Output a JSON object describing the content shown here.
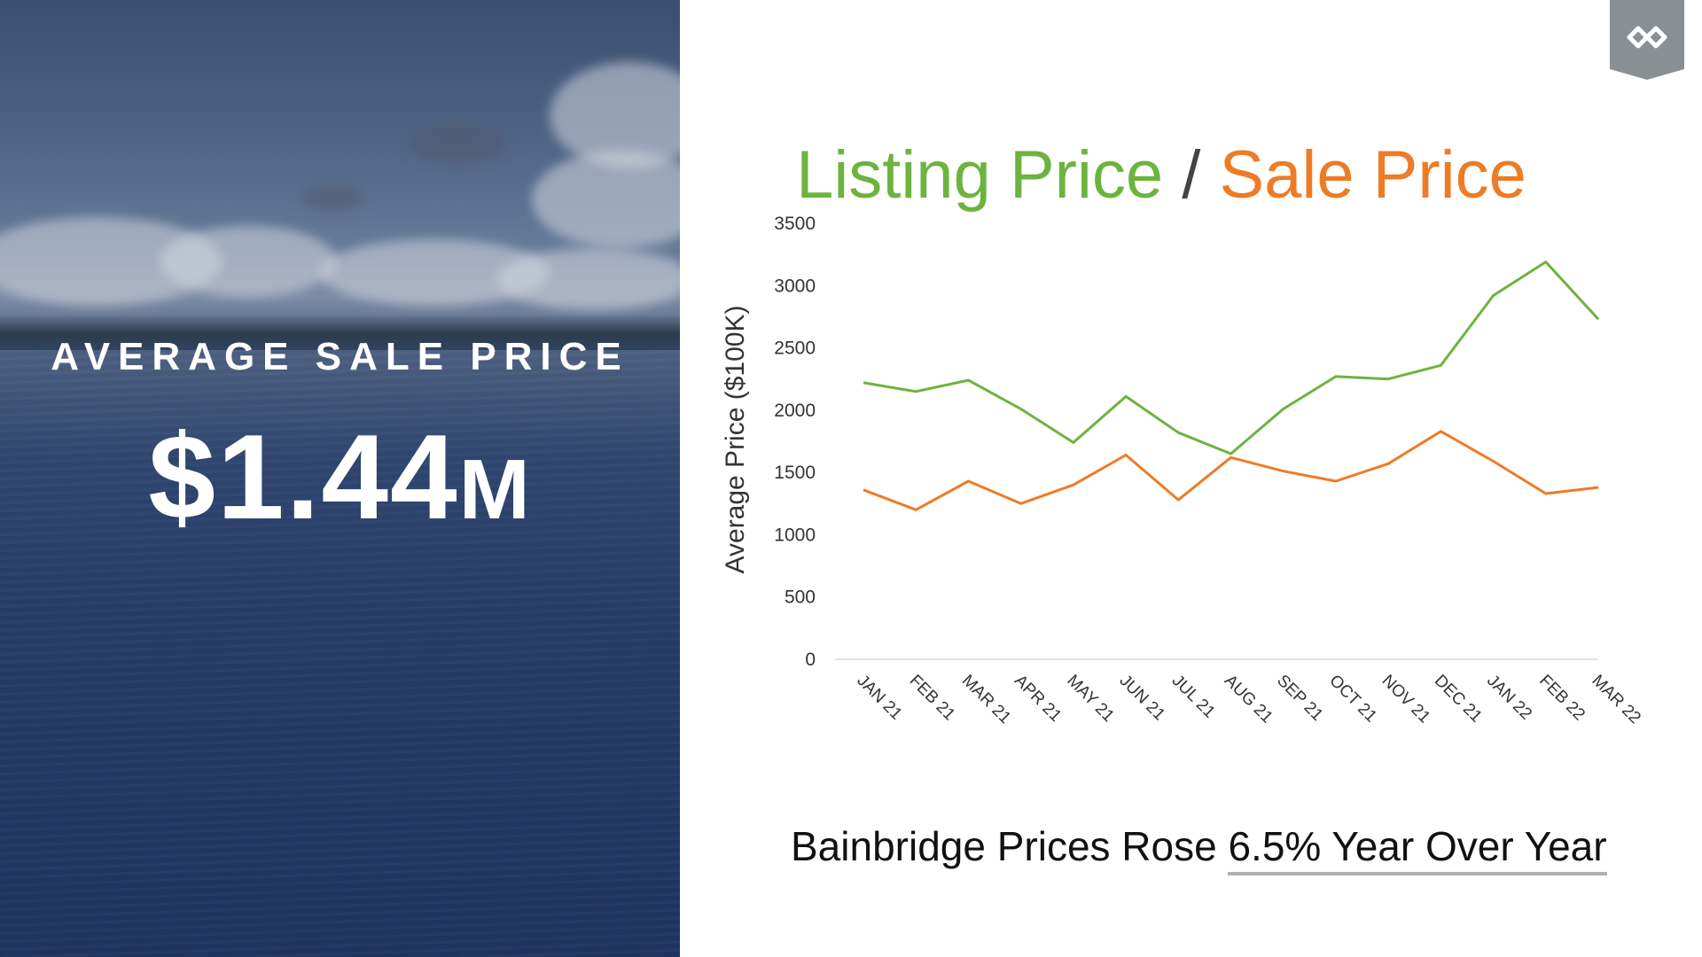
{
  "left_panel": {
    "kicker": "AVERAGE SALE PRICE",
    "value": "$1.44",
    "unit": "M"
  },
  "title": {
    "part1": "Listing Price",
    "separator": " / ",
    "part2": "Sale Price"
  },
  "footnote": {
    "prefix": "Bainbridge Prices Rose ",
    "highlight": "6.5% Year Over Year"
  },
  "colors": {
    "listing": "#6db33f",
    "sale": "#ee7b25"
  },
  "chart_data": {
    "type": "line",
    "ylabel": "Average Price ($100K)",
    "ylim": [
      0,
      3500
    ],
    "yticks": [
      0,
      500,
      1000,
      1500,
      2000,
      2500,
      3000,
      3500
    ],
    "grid": false,
    "categories": [
      "JAN 21",
      "FEB 21",
      "MAR 21",
      "APR 21",
      "MAY 21",
      "JUN 21",
      "JUL 21",
      "AUG 21",
      "SEP 21",
      "OCT 21",
      "NOV 21",
      "DEC 21",
      "JAN 22",
      "FEB 22",
      "MAR 22"
    ],
    "series": [
      {
        "name": "Listing Price",
        "values": [
          2220,
          2150,
          2240,
          2010,
          1740,
          2110,
          1820,
          1650,
          2010,
          2270,
          2250,
          2360,
          2920,
          3190,
          2730
        ]
      },
      {
        "name": "Sale Price",
        "values": [
          1360,
          1200,
          1430,
          1250,
          1400,
          1640,
          1280,
          1620,
          1510,
          1430,
          1570,
          1830,
          1590,
          1330,
          1380
        ]
      }
    ]
  }
}
